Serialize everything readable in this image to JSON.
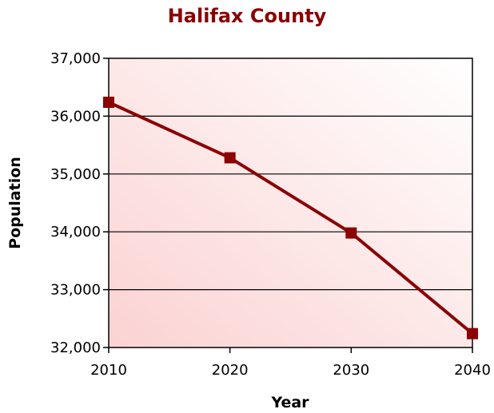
{
  "chart_data": {
    "type": "line",
    "title": "Halifax County",
    "xlabel": "Year",
    "ylabel": "Population",
    "x": [
      2010,
      2020,
      2030,
      2040
    ],
    "x_tick_labels": [
      "2010",
      "2020",
      "2030",
      "2040"
    ],
    "ylim": [
      32000,
      37000
    ],
    "y_ticks": [
      32000,
      33000,
      34000,
      35000,
      36000,
      37000
    ],
    "y_tick_labels": [
      "32,000",
      "33,000",
      "34,000",
      "35,000",
      "36,000",
      "37,000"
    ],
    "series": [
      {
        "values": [
          36240,
          35280,
          33980,
          32240
        ]
      }
    ],
    "grid": true,
    "colors": {
      "line": "#8b0000",
      "marker": "#8b0000",
      "title": "#8b0000",
      "plot_bg_light": "#ffffff",
      "plot_bg_tint": "#fbd2d2"
    }
  }
}
